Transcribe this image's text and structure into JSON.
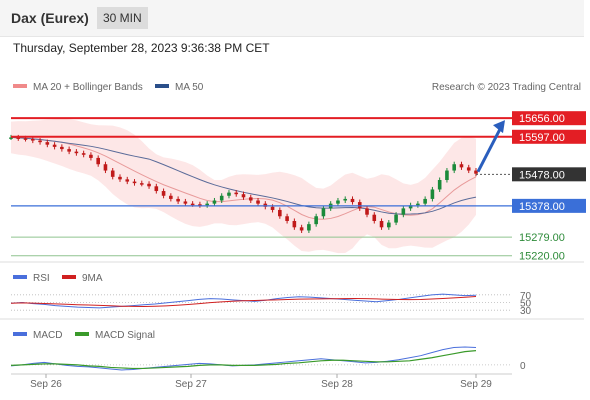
{
  "header": {
    "title": "Dax (Eurex)",
    "timeframe": "30 MIN"
  },
  "timestamp": "Thursday, September 28, 2023 9:36:38 PM CET",
  "legend": {
    "bollinger": "MA 20 + Bollinger Bands",
    "ma50": "MA 50",
    "rsi": "RSI",
    "rsi_ma": "9MA",
    "macd": "MACD",
    "macd_signal": "MACD Signal"
  },
  "credit": "Research © 2023 Trading Central",
  "colors": {
    "resistance": "#e31e24",
    "support": "#3a6fd8",
    "target": "#2a5ebd",
    "price": "#333333",
    "bullish": "#1b8a3a",
    "bearish": "#c01a1a",
    "band": "#fde3e3",
    "ma50": "#5a6b99",
    "ma20": "#e89a9a",
    "rsi": "#4a6fdc",
    "macd": "#4a6fdc",
    "macd_signal": "#3a9a2a"
  },
  "chart_data": {
    "type": "line",
    "x": [
      "Sep 26",
      "Sep 27",
      "Sep 28",
      "Sep 29"
    ],
    "price_ylim": [
      15200,
      15720
    ],
    "price_series": [
      15595,
      15592,
      15590,
      15585,
      15580,
      15572,
      15565,
      15558,
      15550,
      15545,
      15540,
      15530,
      15510,
      15490,
      15470,
      15462,
      15455,
      15450,
      15448,
      15440,
      15425,
      15410,
      15400,
      15392,
      15385,
      15383,
      15380,
      15385,
      15395,
      15410,
      15420,
      15415,
      15405,
      15395,
      15385,
      15375,
      15365,
      15345,
      15330,
      15310,
      15300,
      15320,
      15345,
      15370,
      15385,
      15395,
      15400,
      15390,
      15370,
      15350,
      15330,
      15310,
      15325,
      15350,
      15370,
      15380,
      15385,
      15400,
      15430,
      15460,
      15490,
      15510,
      15500,
      15490,
      15480
    ],
    "levels": [
      {
        "value": "15656.00",
        "kind": "resistance"
      },
      {
        "value": "15597.00",
        "kind": "resistance"
      },
      {
        "value": "15478.00",
        "kind": "last"
      },
      {
        "value": "15378.00",
        "kind": "pivot"
      },
      {
        "value": "15279.00",
        "kind": "support"
      },
      {
        "value": "15220.00",
        "kind": "support"
      }
    ],
    "rsi_levels": [
      "70",
      "50",
      "30"
    ],
    "rsi_series": [
      48,
      50,
      47,
      45,
      42,
      40,
      38,
      37,
      36,
      38,
      40,
      42,
      44,
      46,
      49,
      52,
      55,
      58,
      60,
      59,
      57,
      55,
      53,
      56,
      60,
      63,
      65,
      64,
      62,
      60,
      58,
      56,
      54,
      52,
      55,
      58,
      62,
      66,
      70,
      72,
      70,
      68,
      69
    ],
    "macd_zero": "0",
    "macd_series": [
      -2,
      0,
      3,
      5,
      2,
      -1,
      -3,
      -4,
      -6,
      -8,
      -10,
      -9,
      -7,
      -5,
      -3,
      -1,
      1,
      3,
      2,
      0,
      -2,
      -1,
      0,
      2,
      4,
      6,
      8,
      10,
      12,
      10,
      8,
      6,
      4,
      5,
      7,
      10,
      14,
      18,
      24,
      30,
      34,
      35,
      34
    ],
    "macd_signal_series": [
      -1,
      0,
      1,
      2,
      2,
      1,
      0,
      -2,
      -3,
      -5,
      -6,
      -7,
      -7,
      -6,
      -5,
      -4,
      -3,
      -1,
      0,
      0,
      -1,
      -1,
      -1,
      0,
      1,
      3,
      4,
      6,
      8,
      9,
      9,
      8,
      7,
      6,
      6,
      7,
      8,
      11,
      14,
      18,
      22,
      26,
      28
    ]
  }
}
